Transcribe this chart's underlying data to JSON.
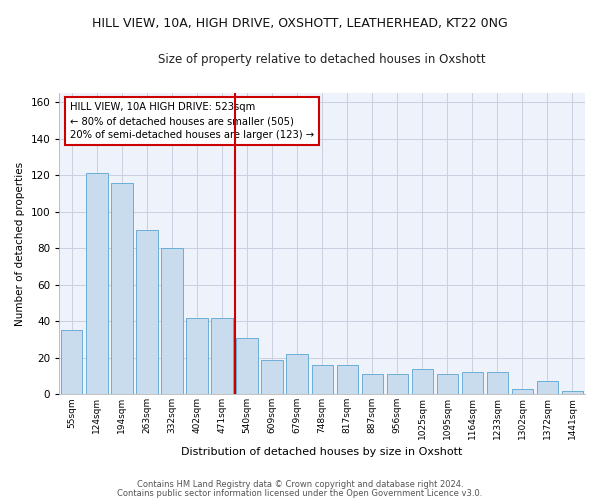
{
  "title": "HILL VIEW, 10A, HIGH DRIVE, OXSHOTT, LEATHERHEAD, KT22 0NG",
  "subtitle": "Size of property relative to detached houses in Oxshott",
  "xlabel": "Distribution of detached houses by size in Oxshott",
  "ylabel": "Number of detached properties",
  "footer1": "Contains HM Land Registry data © Crown copyright and database right 2024.",
  "footer2": "Contains public sector information licensed under the Open Government Licence v3.0.",
  "categories": [
    "55sqm",
    "124sqm",
    "194sqm",
    "263sqm",
    "332sqm",
    "402sqm",
    "471sqm",
    "540sqm",
    "609sqm",
    "679sqm",
    "748sqm",
    "817sqm",
    "887sqm",
    "956sqm",
    "1025sqm",
    "1095sqm",
    "1164sqm",
    "1233sqm",
    "1302sqm",
    "1372sqm",
    "1441sqm"
  ],
  "values": [
    35,
    121,
    116,
    90,
    80,
    42,
    42,
    31,
    19,
    22,
    16,
    16,
    11,
    11,
    14,
    11,
    12,
    12,
    3,
    7,
    2
  ],
  "bar_color": "#c9dcee",
  "bar_edge_color": "#6aaed6",
  "grid_color": "#c8d0e0",
  "background_color": "#eef2fb",
  "figure_background": "#ffffff",
  "vline_color": "#cc0000",
  "annotation_text": "HILL VIEW, 10A HIGH DRIVE: 523sqm\n← 80% of detached houses are smaller (505)\n20% of semi-detached houses are larger (123) →",
  "annotation_box_color": "#ffffff",
  "annotation_box_edge": "#cc0000",
  "ylim": [
    0,
    165
  ],
  "yticks": [
    0,
    20,
    40,
    60,
    80,
    100,
    120,
    140,
    160
  ]
}
